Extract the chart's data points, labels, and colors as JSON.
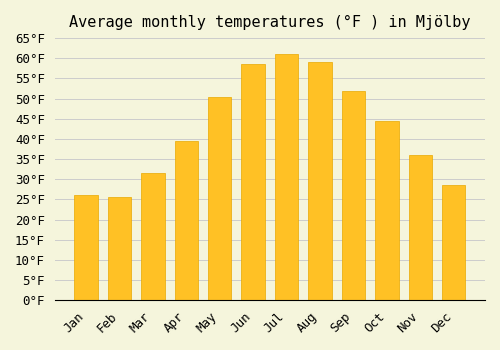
{
  "title": "Average monthly temperatures (°F ) in Mjölby",
  "months": [
    "Jan",
    "Feb",
    "Mar",
    "Apr",
    "May",
    "Jun",
    "Jul",
    "Aug",
    "Sep",
    "Oct",
    "Nov",
    "Dec"
  ],
  "values": [
    26,
    25.5,
    31.5,
    39.5,
    50.5,
    58.5,
    61,
    59,
    52,
    44.5,
    36,
    28.5
  ],
  "bar_color": "#FFC125",
  "bar_edge_color": "#E8A800",
  "ylim": [
    0,
    65
  ],
  "yticks": [
    0,
    5,
    10,
    15,
    20,
    25,
    30,
    35,
    40,
    45,
    50,
    55,
    60,
    65
  ],
  "bg_color": "#F5F5DC",
  "grid_color": "#CCCCCC",
  "title_fontsize": 11,
  "tick_fontsize": 9
}
